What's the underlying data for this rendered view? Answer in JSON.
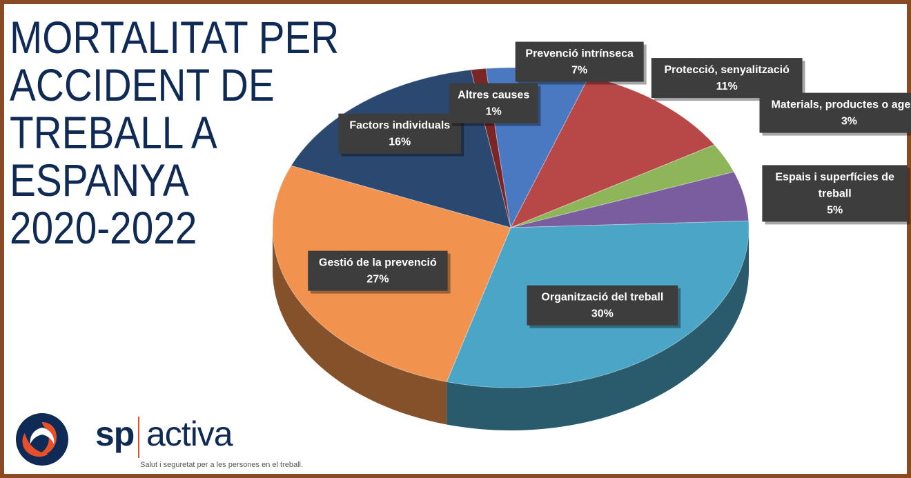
{
  "title_lines": [
    "MORTALITAT PER",
    "ACCIDENT DE",
    "TREBALL A",
    "ESPANYA",
    "2020-2022"
  ],
  "chart_data": {
    "type": "pie",
    "title": "MORTALITAT PER ACCIDENT DE TREBALL A ESPANYA 2020-2022",
    "slices": [
      {
        "label": "Prevenció intrínseca",
        "value": 7,
        "display": "7%",
        "color": "#4a79c2"
      },
      {
        "label": "Protecció, senyalització",
        "value": 11,
        "display": "11%",
        "color": "#b84848"
      },
      {
        "label": "Materials, productes o agents",
        "value": 3,
        "display": "3%",
        "color": "#8fb55a"
      },
      {
        "label": "Espais i superfícies de treball",
        "value": 5,
        "display": "5%",
        "color": "#7a5d9e"
      },
      {
        "label": "Organització del treball",
        "value": 30,
        "display": "30%",
        "color": "#4ba5c6"
      },
      {
        "label": "Gestió de la prevenció",
        "value": 27,
        "display": "27%",
        "color": "#f1934f"
      },
      {
        "label": "Factors individuals",
        "value": 16,
        "display": "16%",
        "color": "#2b4870"
      },
      {
        "label": "Altres causes",
        "value": 1,
        "display": "1%",
        "color": "#7a2626"
      }
    ]
  },
  "logo": {
    "brand_left": "sp",
    "brand_right": "activa",
    "tagline": "Salut i seguretat per a les persones en el treball.",
    "colors": {
      "navy": "#0f2a55",
      "orange": "#e8502b"
    }
  }
}
